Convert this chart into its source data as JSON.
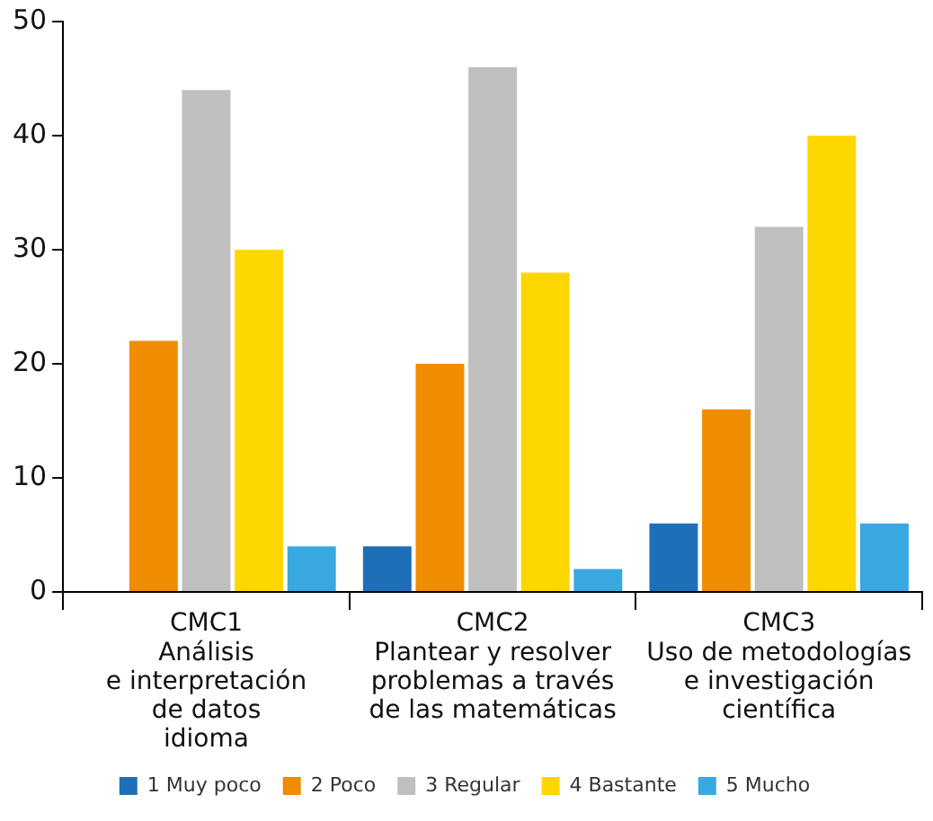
{
  "chart_data": {
    "type": "bar",
    "categories": [
      "CMC1\nAnálisis\ne interpretación\nde datos\nidioma",
      "CMC2\nPlantear y resolver\nproblemas a través\nde las matemáticas",
      "CMC3\nUso de metodologías\ne investigación\ncientífica"
    ],
    "series": [
      {
        "name": "1 Muy poco",
        "color": "#1f6fb8",
        "values": [
          0,
          4,
          6
        ]
      },
      {
        "name": "2 Poco",
        "color": "#f08c00",
        "values": [
          22,
          20,
          16
        ]
      },
      {
        "name": "3 Regular",
        "color": "#bfbfbf",
        "values": [
          44,
          46,
          32
        ]
      },
      {
        "name": "4 Bastante",
        "color": "#ffd700",
        "values": [
          30,
          28,
          40
        ]
      },
      {
        "name": "5 Mucho",
        "color": "#3aa8e0",
        "values": [
          4,
          2,
          6
        ]
      }
    ],
    "ylim": [
      0,
      50
    ],
    "yticks": [
      0,
      10,
      20,
      30,
      40,
      50
    ],
    "grid": false,
    "legend": "bottom"
  }
}
